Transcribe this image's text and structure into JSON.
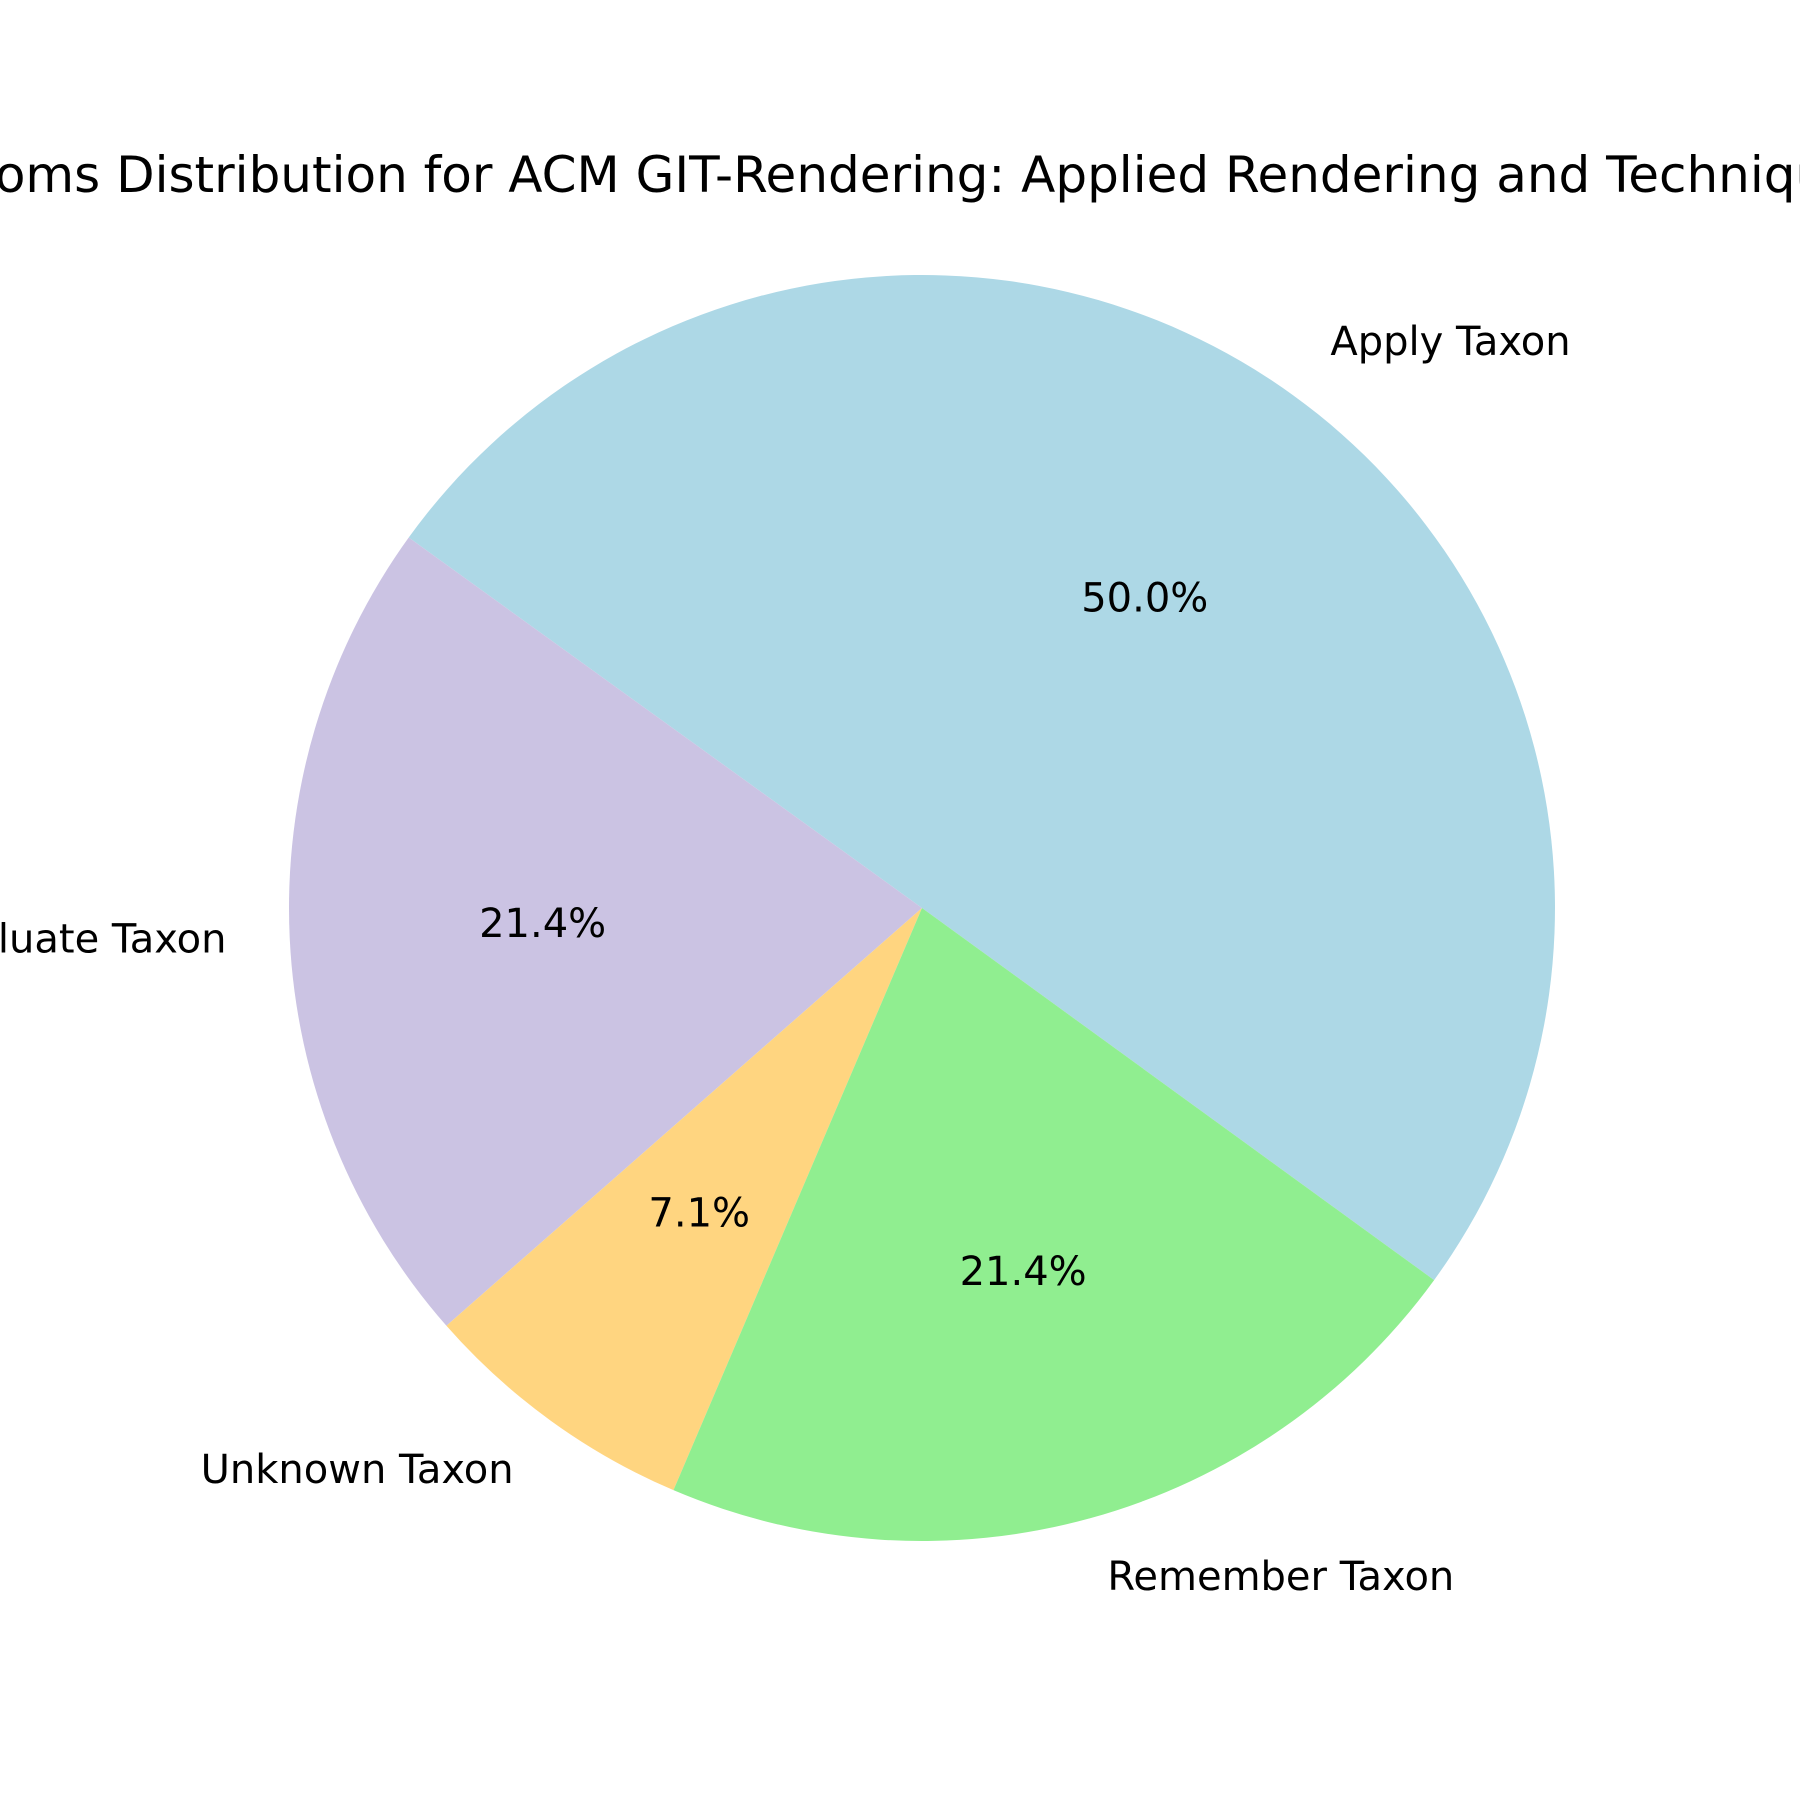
{
  "chart_data": {
    "type": "pie",
    "title": "Blooms Distribution for ACM GIT-Rendering: Applied Rendering and Techniques",
    "slices": [
      {
        "label": "Apply Taxon",
        "value": 50.0,
        "pct_label": "50.0%",
        "color": "#add8e6"
      },
      {
        "label": "Evaluate Taxon",
        "value": 21.4,
        "pct_label": "21.4%",
        "color": "#cbc3e3"
      },
      {
        "label": "Unknown Taxon",
        "value": 7.1,
        "pct_label": "7.1%",
        "color": "#ffd580"
      },
      {
        "label": "Remember Taxon",
        "value": 21.4,
        "pct_label": "21.4%",
        "color": "#90ee90"
      }
    ],
    "start_angle_deg": -36,
    "direction": "counterclockwise",
    "legend": "none"
  }
}
